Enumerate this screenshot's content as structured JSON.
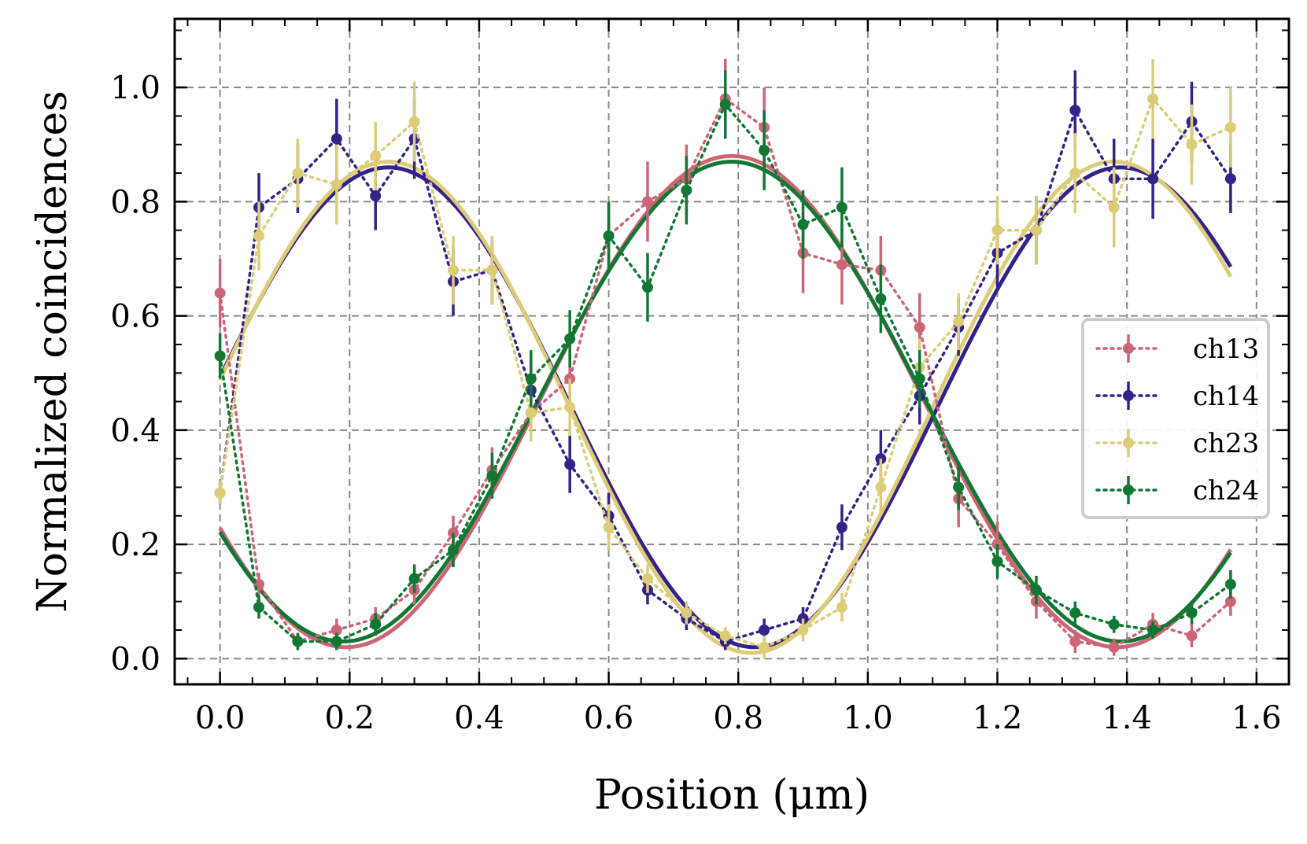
{
  "chart_data": {
    "type": "line",
    "title": "",
    "xlabel": "Position (μm)",
    "ylabel": "Normalized coincidences",
    "xlim": [
      -0.07,
      1.65
    ],
    "ylim": [
      -0.045,
      1.12
    ],
    "xticks": [
      0.0,
      0.2,
      0.4,
      0.6,
      0.8,
      1.0,
      1.2,
      1.4,
      1.6
    ],
    "xtick_labels": [
      "0.0",
      "0.2",
      "0.4",
      "0.6",
      "0.8",
      "1.0",
      "1.2",
      "1.4",
      "1.6"
    ],
    "yticks": [
      0.0,
      0.2,
      0.4,
      0.6,
      0.8,
      1.0
    ],
    "ytick_labels": [
      "0.0",
      "0.2",
      "0.4",
      "0.6",
      "0.8",
      "1.0"
    ],
    "grid": true,
    "legend_position": "right",
    "x": [
      0.0,
      0.06,
      0.12,
      0.18,
      0.24,
      0.3,
      0.36,
      0.42,
      0.48,
      0.54,
      0.6,
      0.66,
      0.72,
      0.78,
      0.84,
      0.9,
      0.96,
      1.02,
      1.08,
      1.14,
      1.2,
      1.26,
      1.32,
      1.38,
      1.44,
      1.5,
      1.56
    ],
    "series": [
      {
        "name": "ch13",
        "color": "#cc6677",
        "values": [
          0.64,
          0.13,
          0.03,
          0.05,
          0.07,
          0.12,
          0.22,
          0.33,
          0.43,
          0.49,
          0.74,
          0.8,
          0.84,
          0.98,
          0.93,
          0.71,
          0.69,
          0.68,
          0.58,
          0.28,
          0.2,
          0.1,
          0.03,
          0.02,
          0.06,
          0.04,
          0.1
        ],
        "errors": [
          0.06,
          0.02,
          0.015,
          0.02,
          0.02,
          0.025,
          0.03,
          0.04,
          0.05,
          0.05,
          0.06,
          0.07,
          0.06,
          0.07,
          0.07,
          0.07,
          0.07,
          0.06,
          0.06,
          0.05,
          0.04,
          0.03,
          0.02,
          0.015,
          0.02,
          0.02,
          0.025
        ],
        "fit": {
          "amplitude": 0.43,
          "offset": 0.45,
          "period": 1.19,
          "peak_x": 0.79
        }
      },
      {
        "name": "ch14",
        "color": "#332288",
        "values": [
          0.29,
          0.79,
          0.84,
          0.91,
          0.81,
          0.91,
          0.66,
          0.68,
          0.47,
          0.34,
          0.25,
          0.12,
          0.07,
          0.03,
          0.05,
          0.07,
          0.23,
          0.35,
          0.46,
          0.58,
          0.71,
          0.75,
          0.96,
          0.84,
          0.84,
          0.94,
          0.84
        ],
        "errors": [
          0.02,
          0.06,
          0.06,
          0.07,
          0.06,
          0.07,
          0.06,
          0.06,
          0.05,
          0.05,
          0.04,
          0.025,
          0.02,
          0.015,
          0.02,
          0.02,
          0.04,
          0.05,
          0.05,
          0.05,
          0.06,
          0.06,
          0.07,
          0.07,
          0.07,
          0.07,
          0.06
        ],
        "fit": {
          "amplitude": 0.42,
          "offset": 0.44,
          "period": 1.13,
          "peak_x": 0.26
        }
      },
      {
        "name": "ch23",
        "color": "#ddcc77",
        "values": [
          0.29,
          0.74,
          0.85,
          0.83,
          0.88,
          0.94,
          0.68,
          0.68,
          0.43,
          0.44,
          0.23,
          0.14,
          0.08,
          0.04,
          0.02,
          0.05,
          0.09,
          0.3,
          0.51,
          0.59,
          0.75,
          0.75,
          0.85,
          0.79,
          0.98,
          0.9,
          0.93
        ],
        "errors": [
          0.02,
          0.06,
          0.06,
          0.07,
          0.06,
          0.07,
          0.06,
          0.06,
          0.05,
          0.05,
          0.04,
          0.025,
          0.02,
          0.015,
          0.02,
          0.02,
          0.025,
          0.05,
          0.05,
          0.05,
          0.06,
          0.06,
          0.07,
          0.07,
          0.07,
          0.07,
          0.07
        ],
        "fit": {
          "amplitude": 0.43,
          "offset": 0.44,
          "period": 1.12,
          "peak_x": 0.26
        }
      },
      {
        "name": "ch24",
        "color": "#117733",
        "values": [
          0.53,
          0.09,
          0.03,
          0.03,
          0.06,
          0.14,
          0.19,
          0.32,
          0.49,
          0.56,
          0.74,
          0.65,
          0.82,
          0.97,
          0.89,
          0.76,
          0.79,
          0.63,
          0.49,
          0.3,
          0.17,
          0.12,
          0.08,
          0.06,
          0.05,
          0.08,
          0.13
        ],
        "errors": [
          0.04,
          0.02,
          0.015,
          0.015,
          0.02,
          0.025,
          0.03,
          0.04,
          0.05,
          0.05,
          0.06,
          0.06,
          0.06,
          0.06,
          0.07,
          0.06,
          0.07,
          0.06,
          0.05,
          0.04,
          0.03,
          0.025,
          0.02,
          0.015,
          0.015,
          0.02,
          0.025
        ],
        "fit": {
          "amplitude": 0.42,
          "offset": 0.45,
          "period": 1.2,
          "peak_x": 0.79
        }
      }
    ]
  }
}
